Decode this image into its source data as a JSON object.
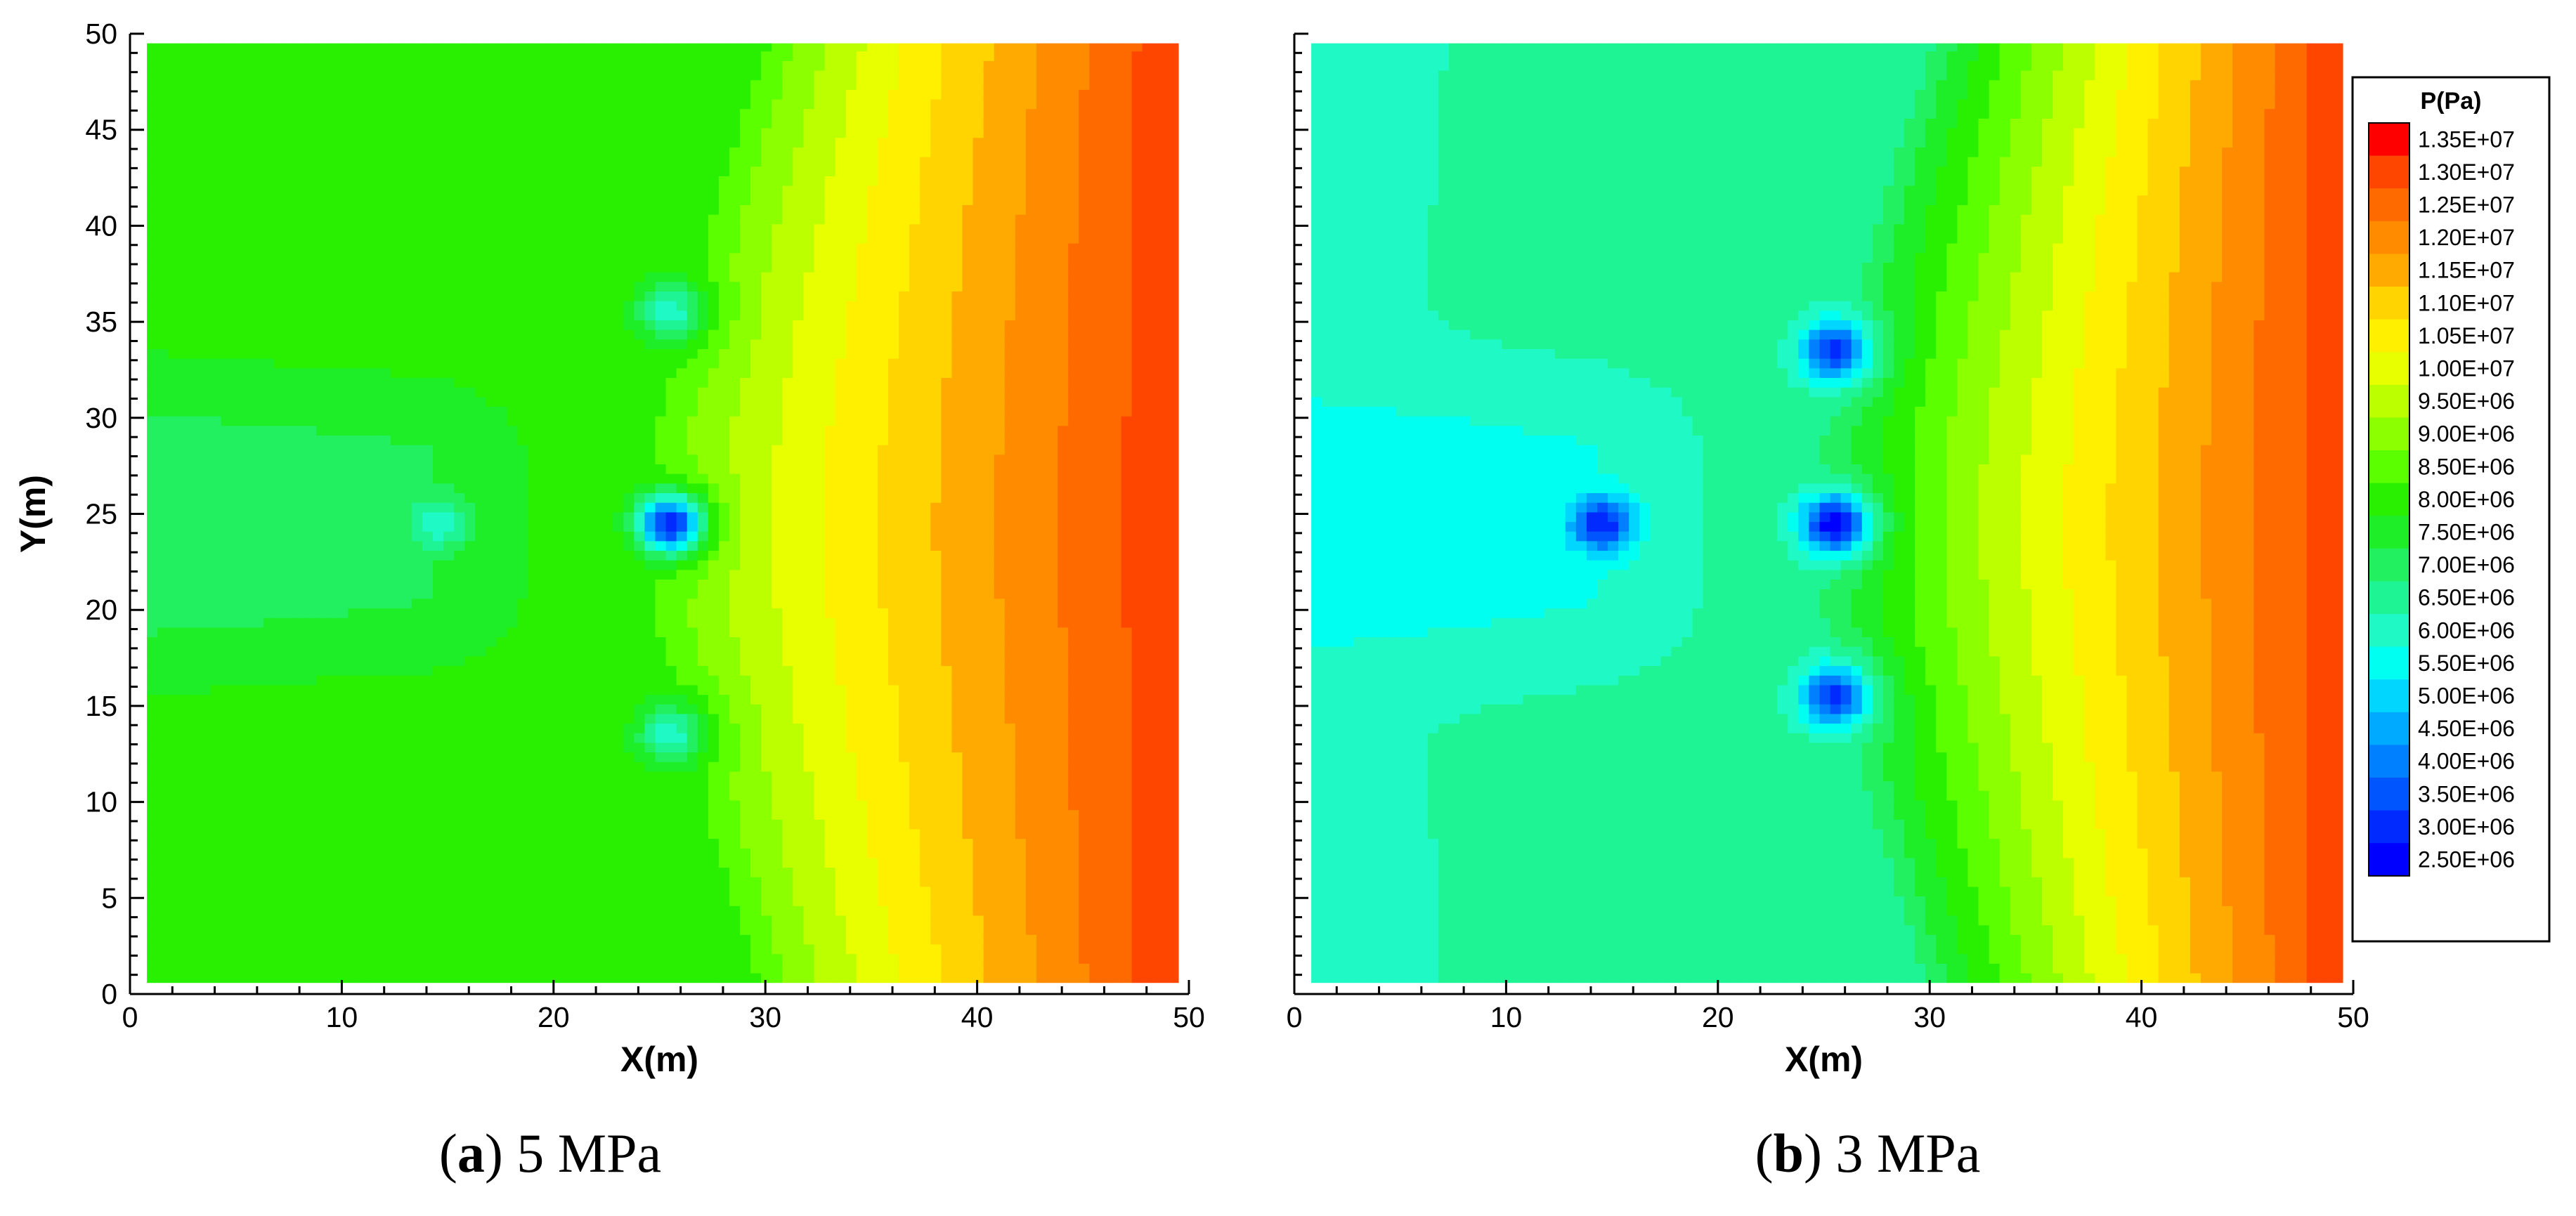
{
  "chart_data": [
    {
      "type": "heatmap",
      "subtype": "filled-contour",
      "panel_label": "a",
      "caption": "5 MPa",
      "xlabel": "X(m)",
      "ylabel": "Y(m)",
      "xlim": [
        0,
        50
      ],
      "ylim": [
        0,
        50
      ],
      "xticks": [
        0,
        10,
        20,
        30,
        40,
        50
      ],
      "yticks": [
        0,
        5,
        10,
        15,
        20,
        25,
        30,
        35,
        40,
        45,
        50
      ],
      "domain": {
        "x": [
          0.8,
          49.5
        ],
        "y": [
          0.6,
          49.5
        ]
      },
      "field_unit": "Pa",
      "field_model": {
        "right_boundary_max": 13400000,
        "bulk_left_min": 8100000,
        "left_zone_min": 7250000
      },
      "wells": [
        {
          "x": 25.5,
          "y": 24.5,
          "min_pressure": 3000000
        },
        {
          "x": 25.5,
          "y": 35.5,
          "min_pressure": 6200000
        },
        {
          "x": 25.5,
          "y": 13.5,
          "min_pressure": 6200000
        },
        {
          "x": 14.5,
          "y": 24.5,
          "min_pressure": 6100000
        }
      ]
    },
    {
      "type": "heatmap",
      "subtype": "filled-contour",
      "panel_label": "b",
      "caption": "3 MPa",
      "xlabel": "X(m)",
      "ylabel": "",
      "xlim": [
        0,
        50
      ],
      "ylim": [
        0,
        50
      ],
      "xticks": [
        0,
        10,
        20,
        30,
        40,
        50
      ],
      "yticks": [
        0,
        5,
        10,
        15,
        20,
        25,
        30,
        35,
        40,
        45,
        50
      ],
      "domain": {
        "x": [
          0.8,
          49.5
        ],
        "y": [
          0.6,
          49.5
        ]
      },
      "field_unit": "Pa",
      "field_model": {
        "right_boundary_max": 13400000,
        "bulk_left_min": 6400000,
        "left_zone_min": 5700000
      },
      "wells": [
        {
          "x": 25.5,
          "y": 24.5,
          "min_pressure": 2500000
        },
        {
          "x": 25.5,
          "y": 33.5,
          "min_pressure": 3200000
        },
        {
          "x": 25.5,
          "y": 15.5,
          "min_pressure": 3200000
        },
        {
          "x": 14.5,
          "y": 24.5,
          "min_pressure": 3000000
        }
      ]
    }
  ],
  "legend": {
    "title": "P(Pa)",
    "levels": [
      {
        "label": "1.35E+07",
        "value": 13500000,
        "color": "#ff0000"
      },
      {
        "label": "1.30E+07",
        "value": 13000000,
        "color": "#ff4600"
      },
      {
        "label": "1.25E+07",
        "value": 12500000,
        "color": "#ff6a00"
      },
      {
        "label": "1.20E+07",
        "value": 12000000,
        "color": "#ff8c00"
      },
      {
        "label": "1.15E+07",
        "value": 11500000,
        "color": "#ffaa00"
      },
      {
        "label": "1.10E+07",
        "value": 11000000,
        "color": "#ffd400"
      },
      {
        "label": "1.05E+07",
        "value": 10500000,
        "color": "#fff000"
      },
      {
        "label": "1.00E+07",
        "value": 10000000,
        "color": "#e8ff00"
      },
      {
        "label": "9.50E+06",
        "value": 9500000,
        "color": "#bcff00"
      },
      {
        "label": "9.00E+06",
        "value": 9000000,
        "color": "#8cff00"
      },
      {
        "label": "8.50E+06",
        "value": 8500000,
        "color": "#5cff00"
      },
      {
        "label": "8.00E+06",
        "value": 8000000,
        "color": "#28f000"
      },
      {
        "label": "7.50E+06",
        "value": 7500000,
        "color": "#1eee28"
      },
      {
        "label": "7.00E+06",
        "value": 7000000,
        "color": "#22f060"
      },
      {
        "label": "6.50E+06",
        "value": 6500000,
        "color": "#1ef494"
      },
      {
        "label": "6.00E+06",
        "value": 6000000,
        "color": "#1ff9c6"
      },
      {
        "label": "5.50E+06",
        "value": 5500000,
        "color": "#00fff0"
      },
      {
        "label": "5.00E+06",
        "value": 5000000,
        "color": "#00d6ff"
      },
      {
        "label": "4.50E+06",
        "value": 4500000,
        "color": "#00aaff"
      },
      {
        "label": "4.00E+06",
        "value": 4000000,
        "color": "#0080ff"
      },
      {
        "label": "3.50E+06",
        "value": 3500000,
        "color": "#0055ff"
      },
      {
        "label": "3.00E+06",
        "value": 3000000,
        "color": "#002aff"
      },
      {
        "label": "2.50E+06",
        "value": 2500000,
        "color": "#0000ff"
      }
    ]
  }
}
